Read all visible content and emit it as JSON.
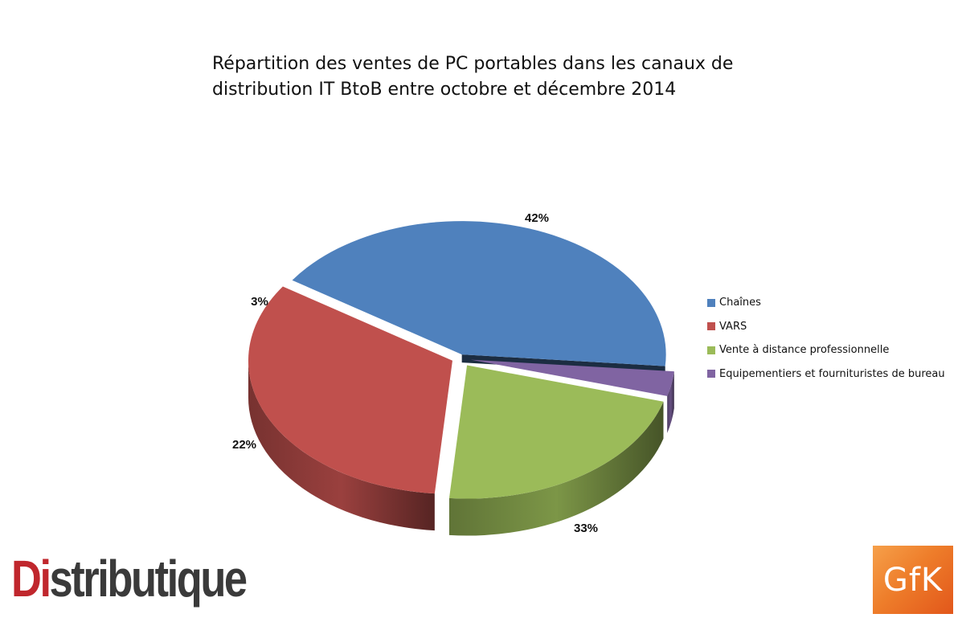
{
  "chart_data": {
    "type": "pie",
    "title_lines": [
      "Répartition des ventes de PC portables dans les canaux de",
      "distribution IT BtoB entre octobre et décembre 2014"
    ],
    "slices": [
      {
        "name": "Chaînes",
        "value": 42,
        "label": "42%",
        "color": "#4f81bd"
      },
      {
        "name": "VARS",
        "value": 33,
        "label": "33%",
        "color": "#c0504d"
      },
      {
        "name": "Vente à distance professionnelle",
        "value": 22,
        "label": "22%",
        "color": "#9bbb59"
      },
      {
        "name": "Equipementiers et fournituristes de bureau",
        "value": 3,
        "label": "3%",
        "color": "#8064a2"
      }
    ],
    "legend_position": "right",
    "exploded": true,
    "three_d": true
  },
  "logos": {
    "left": {
      "lead": "Di",
      "rest": "stributique"
    },
    "right": "GfK"
  }
}
